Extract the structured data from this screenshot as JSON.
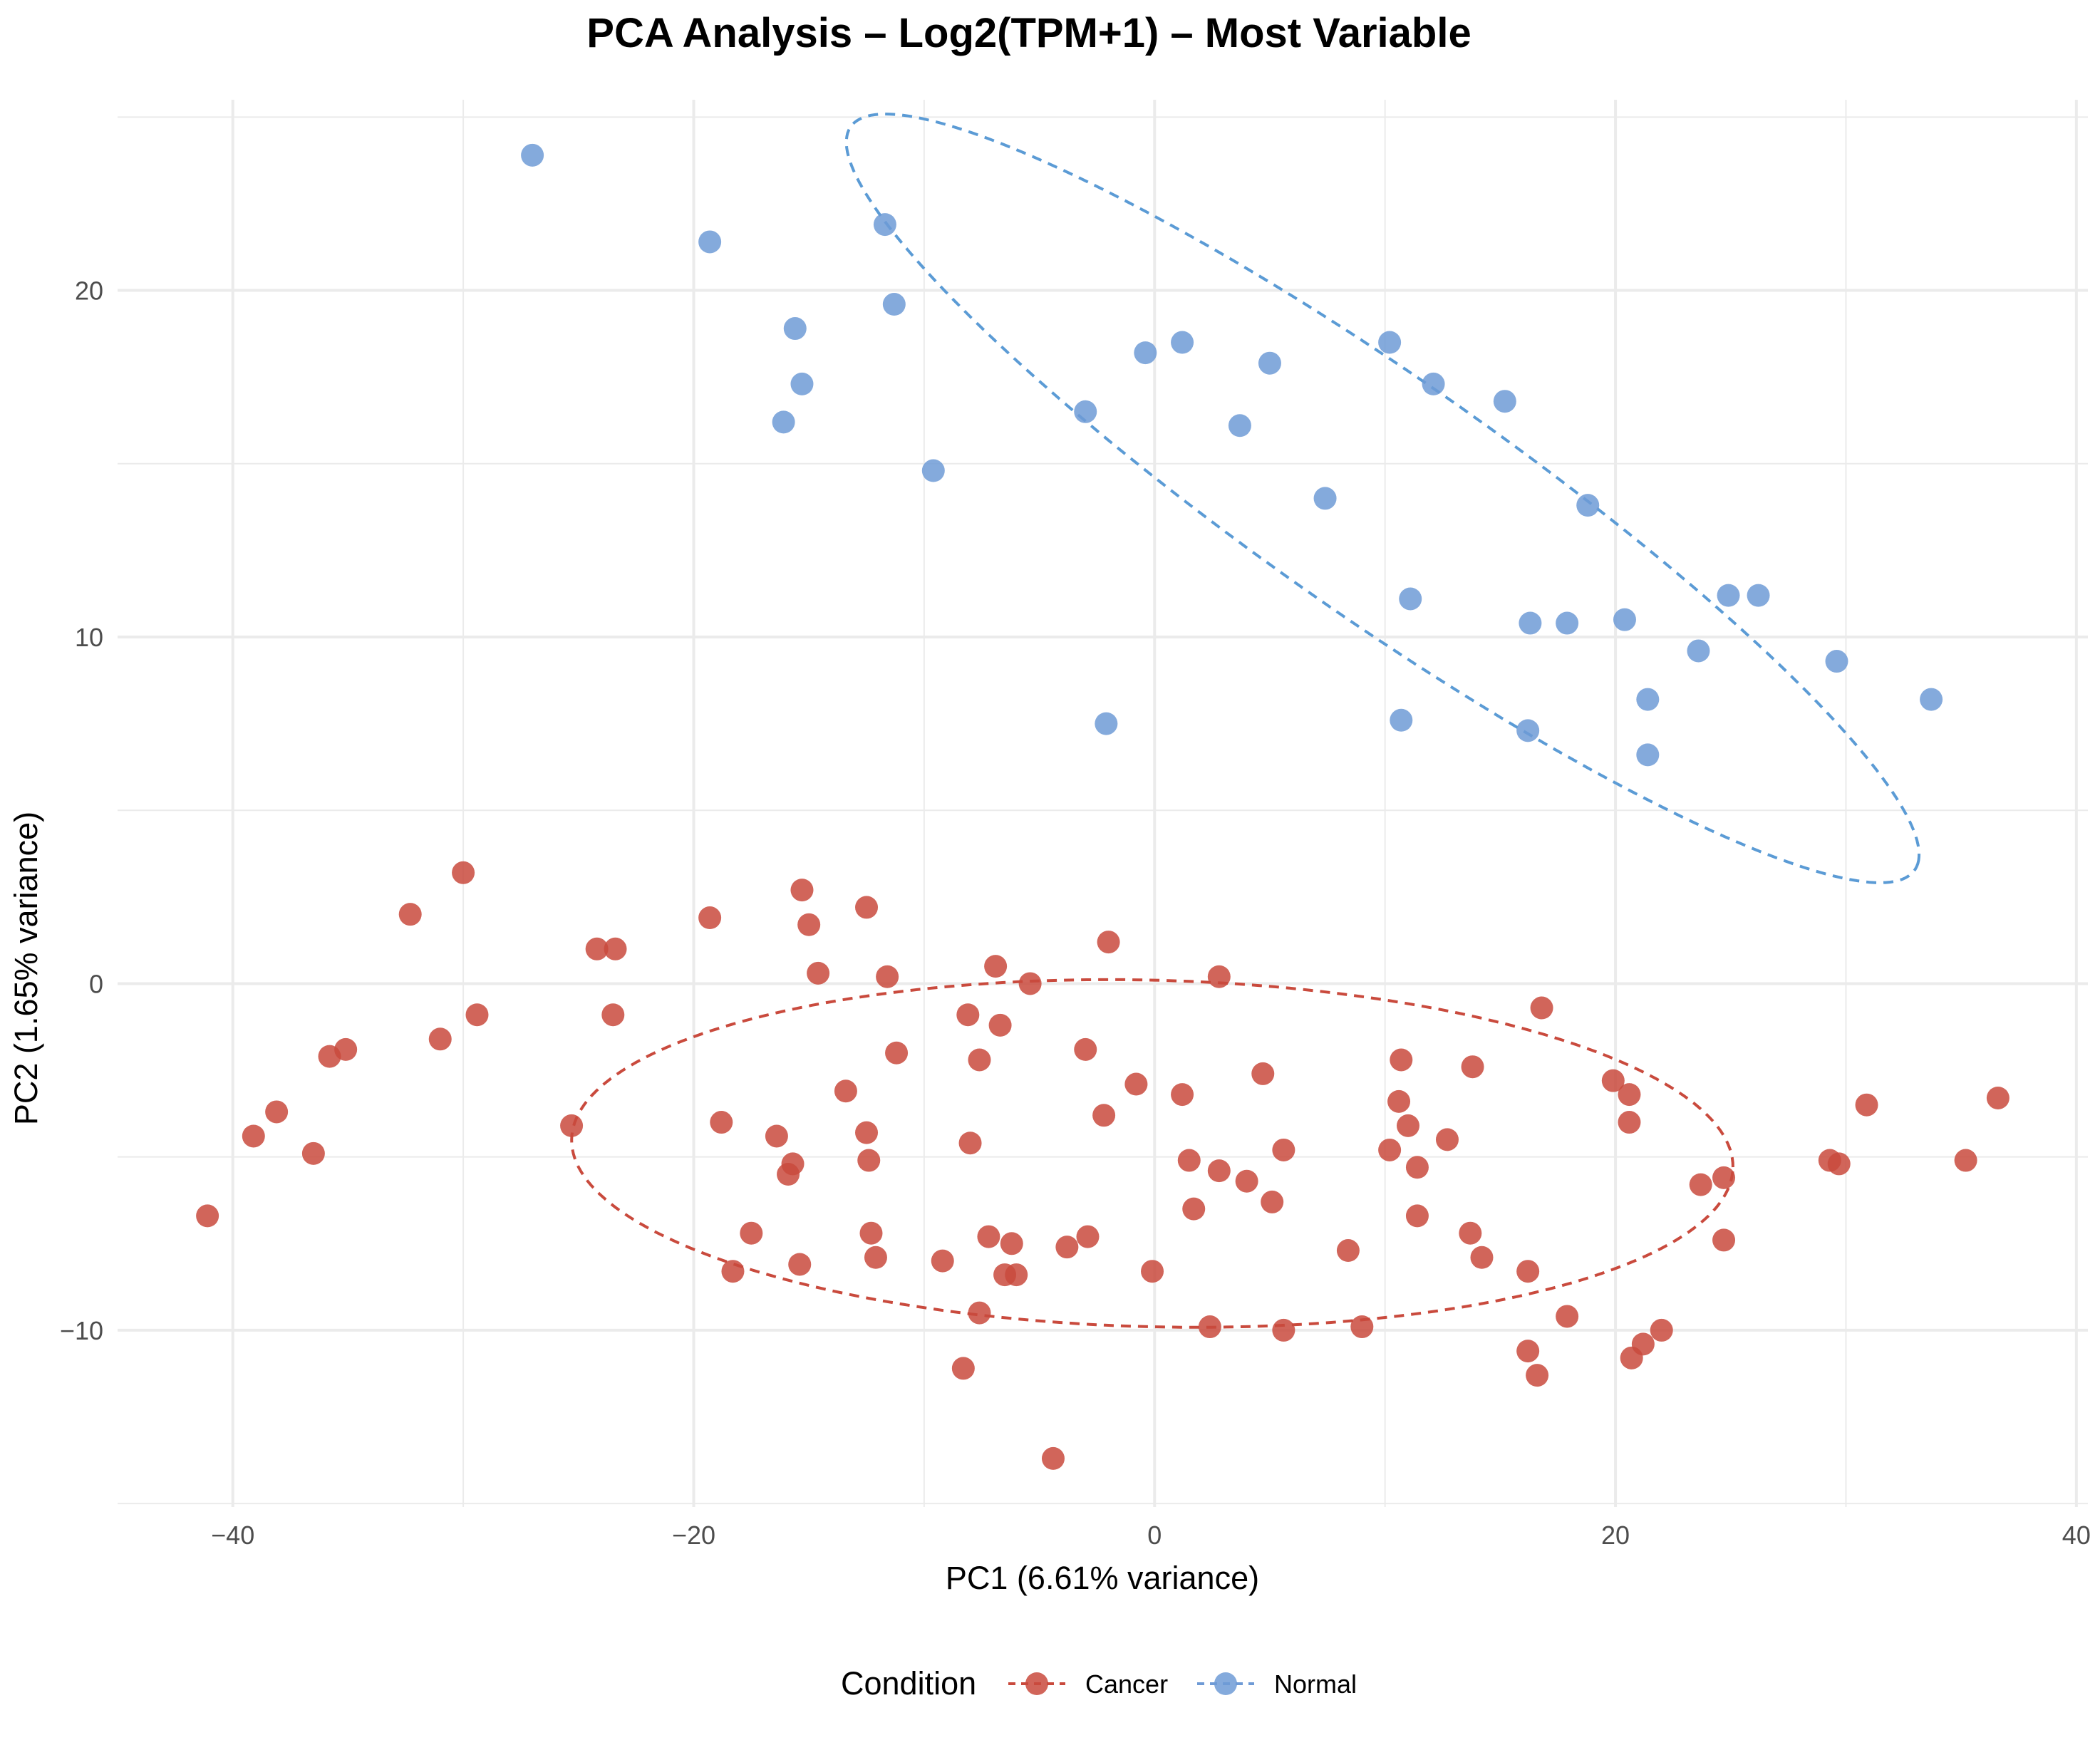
{
  "chart_data": {
    "type": "scatter",
    "title": "PCA Analysis – Log2(TPM+1) – Most Variable",
    "xlabel": "PC1 (6.61% variance)",
    "ylabel": "PC2 (1.65% variance)",
    "xlim": [
      -45,
      40.5
    ],
    "ylim": [
      -15.1,
      25.5
    ],
    "x_ticks": [
      -40,
      -20,
      0,
      20,
      40
    ],
    "x_tick_labels": [
      "−40",
      "−20",
      "0",
      "20",
      "40"
    ],
    "y_ticks": [
      -10,
      0,
      10,
      20
    ],
    "y_tick_labels": [
      "−10",
      "0",
      "10",
      "20"
    ],
    "grid": true,
    "legend": {
      "title": "Condition",
      "position": "bottom"
    },
    "series": [
      {
        "name": "Cancer",
        "color": "#c94a3d",
        "points": [
          [
            -41.1,
            -6.7
          ],
          [
            -39.1,
            -4.4
          ],
          [
            -38.1,
            -3.7
          ],
          [
            -36.5,
            -4.9
          ],
          [
            -35.8,
            -2.1
          ],
          [
            -35.1,
            -1.9
          ],
          [
            -32.3,
            2.0
          ],
          [
            -31.0,
            -1.6
          ],
          [
            -30.0,
            3.2
          ],
          [
            -29.4,
            -0.9
          ],
          [
            -25.3,
            -4.1
          ],
          [
            -24.2,
            1.0
          ],
          [
            -23.4,
            1.0
          ],
          [
            -23.5,
            -0.9
          ],
          [
            -19.3,
            1.9
          ],
          [
            -18.8,
            -4.0
          ],
          [
            -18.3,
            -8.3
          ],
          [
            -17.5,
            -7.2
          ],
          [
            -16.4,
            -4.4
          ],
          [
            -15.9,
            -5.5
          ],
          [
            -15.7,
            -5.2
          ],
          [
            -15.4,
            -8.1
          ],
          [
            -15.3,
            2.7
          ],
          [
            -15.0,
            1.7
          ],
          [
            -14.6,
            0.3
          ],
          [
            -13.4,
            -3.1
          ],
          [
            -12.5,
            2.2
          ],
          [
            -12.5,
            -4.3
          ],
          [
            -12.4,
            -5.1
          ],
          [
            -12.3,
            -7.2
          ],
          [
            -12.1,
            -7.9
          ],
          [
            -11.6,
            0.2
          ],
          [
            -11.2,
            -2.0
          ],
          [
            -9.2,
            -8.0
          ],
          [
            -8.3,
            -11.1
          ],
          [
            -8.1,
            -0.9
          ],
          [
            -8.0,
            -4.6
          ],
          [
            -7.6,
            -2.2
          ],
          [
            -7.6,
            -9.5
          ],
          [
            -7.2,
            -7.3
          ],
          [
            -6.9,
            0.5
          ],
          [
            -6.7,
            -1.2
          ],
          [
            -6.5,
            -8.4
          ],
          [
            -6.2,
            -7.5
          ],
          [
            -6.0,
            -8.4
          ],
          [
            -5.4,
            0.0
          ],
          [
            -4.4,
            -13.7
          ],
          [
            -3.8,
            -7.6
          ],
          [
            -3.0,
            -1.9
          ],
          [
            -2.9,
            -7.3
          ],
          [
            -2.2,
            -3.8
          ],
          [
            -2.0,
            1.2
          ],
          [
            -0.8,
            -2.9
          ],
          [
            -0.1,
            -8.3
          ],
          [
            1.2,
            -3.2
          ],
          [
            1.5,
            -5.1
          ],
          [
            1.7,
            -6.5
          ],
          [
            2.4,
            -9.9
          ],
          [
            2.8,
            -5.4
          ],
          [
            2.8,
            0.2
          ],
          [
            4.0,
            -5.7
          ],
          [
            4.7,
            -2.6
          ],
          [
            5.1,
            -6.3
          ],
          [
            5.6,
            -4.8
          ],
          [
            5.6,
            -10.0
          ],
          [
            8.4,
            -7.7
          ],
          [
            9.0,
            -9.9
          ],
          [
            10.2,
            -4.8
          ],
          [
            10.6,
            -3.4
          ],
          [
            10.7,
            -2.2
          ],
          [
            11.0,
            -4.1
          ],
          [
            11.4,
            -5.3
          ],
          [
            11.4,
            -6.7
          ],
          [
            12.7,
            -4.5
          ],
          [
            13.7,
            -7.2
          ],
          [
            13.8,
            -2.4
          ],
          [
            14.2,
            -7.9
          ],
          [
            16.2,
            -8.3
          ],
          [
            16.2,
            -10.6
          ],
          [
            16.6,
            -11.3
          ],
          [
            16.8,
            -0.7
          ],
          [
            17.9,
            -9.6
          ],
          [
            19.9,
            -2.8
          ],
          [
            20.6,
            -3.2
          ],
          [
            20.6,
            -4.0
          ],
          [
            20.7,
            -10.8
          ],
          [
            21.2,
            -10.4
          ],
          [
            22.0,
            -10.0
          ],
          [
            23.7,
            -5.8
          ],
          [
            24.7,
            -5.6
          ],
          [
            24.7,
            -7.4
          ],
          [
            29.3,
            -5.1
          ],
          [
            29.7,
            -5.2
          ],
          [
            30.9,
            -3.5
          ],
          [
            35.2,
            -5.1
          ],
          [
            36.6,
            -3.3
          ]
        ]
      },
      {
        "name": "Normal",
        "color": "#6f9bd6",
        "points": [
          [
            -27.0,
            23.9
          ],
          [
            -19.3,
            21.4
          ],
          [
            -11.7,
            21.9
          ],
          [
            -11.3,
            19.6
          ],
          [
            -15.6,
            18.9
          ],
          [
            -15.3,
            17.3
          ],
          [
            -16.1,
            16.2
          ],
          [
            -9.6,
            14.8
          ],
          [
            -3.0,
            16.5
          ],
          [
            -2.1,
            7.5
          ],
          [
            -0.4,
            18.2
          ],
          [
            1.2,
            18.5
          ],
          [
            3.7,
            16.1
          ],
          [
            5.0,
            17.9
          ],
          [
            7.4,
            14.0
          ],
          [
            10.2,
            18.5
          ],
          [
            12.1,
            17.3
          ],
          [
            15.2,
            16.8
          ],
          [
            10.7,
            7.6
          ],
          [
            11.1,
            11.1
          ],
          [
            16.3,
            10.4
          ],
          [
            16.2,
            7.3
          ],
          [
            17.9,
            10.4
          ],
          [
            18.8,
            13.8
          ],
          [
            20.4,
            10.5
          ],
          [
            21.4,
            8.2
          ],
          [
            21.4,
            6.6
          ],
          [
            23.6,
            9.6
          ],
          [
            24.9,
            11.2
          ],
          [
            26.2,
            11.2
          ],
          [
            29.6,
            9.3
          ],
          [
            33.7,
            8.2
          ]
        ]
      }
    ],
    "ellipses": [
      {
        "series": "Cancer",
        "center": [
          -0.1,
          -4.9
        ],
        "semi_major": 25.2,
        "semi_minor": 5.0,
        "angle_deg": -0.9,
        "color": "#c94a3d",
        "style": "dashed"
      },
      {
        "series": "Normal",
        "center": [
          9.9,
          14.0
        ],
        "semi_major": 25.5,
        "semi_minor": 3.8,
        "angle_deg": -24.4,
        "color": "#5b9bd5",
        "style": "dashed"
      }
    ]
  }
}
